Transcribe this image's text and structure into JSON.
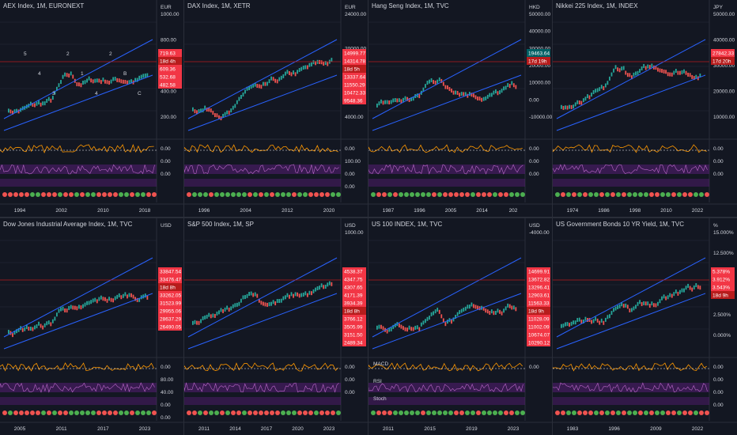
{
  "colors": {
    "bg": "#131722",
    "up": "#26a69a",
    "down": "#ef5350",
    "trend": "#2962ff",
    "badge": "#f23645",
    "purple": "#7b1fa2",
    "green_dot": "#4caf50"
  },
  "panes": [
    {
      "title": "AEX Index, 1M, EURONEXT",
      "currency": "EUR",
      "yticks": [
        "1000.00",
        "800.00",
        "600.00",
        "400.00",
        "200.00"
      ],
      "badges": [
        "719.63",
        "18d 4h",
        "609.36",
        "532.68",
        "482.58"
      ],
      "ind": [
        "0.00",
        "0.00",
        "0.00"
      ],
      "xticks": [
        "1994",
        "2002",
        "2010",
        "2018"
      ],
      "wave": [
        "5",
        "4",
        "3",
        "2",
        "1",
        "4",
        "2",
        "B",
        "C"
      ]
    },
    {
      "title": "DAX Index, 1M, XETR",
      "currency": "EUR",
      "yticks": [
        "24000.00",
        "20000.00",
        "8000.00",
        "4000.00"
      ],
      "badges": [
        "14999.77",
        "14314.78",
        "18d 5h",
        "13337.64",
        "11550.29",
        "10472.33",
        "9548.36"
      ],
      "ind": [
        "0.00",
        "100.00",
        "0.00",
        "0.00"
      ],
      "xticks": [
        "1996",
        "2004",
        "2012",
        "2020"
      ]
    },
    {
      "title": "Hang Seng Index, 1M, TVC",
      "currency": "HKD",
      "yticks": [
        "50000.00",
        "40000.00",
        "30000.00",
        "20000.00",
        "10000.00",
        "0.00",
        "-10000.00"
      ],
      "badges": [
        "19463.64",
        "17d 19h"
      ],
      "ind": [
        "0.00",
        "0.00",
        "0.00"
      ],
      "xticks": [
        "1987",
        "1996",
        "2005",
        "2014",
        "202"
      ]
    },
    {
      "title": "Nikkei 225 Index, 1M, INDEX",
      "currency": "JPY",
      "yticks": [
        "50000.00",
        "40000.00",
        "30000.00",
        "20000.00",
        "10000.00"
      ],
      "badges": [
        "27842.33",
        "17d 20h"
      ],
      "ind": [
        "0.00",
        "0.00",
        "0.00"
      ],
      "xticks": [
        "1974",
        "1986",
        "1998",
        "2010",
        "2022"
      ]
    },
    {
      "title": "Dow Jones Industrial Average Index, 1M, TVC",
      "currency": "USD",
      "yticks": [],
      "badges": [
        "33847.54",
        "33476.47",
        "18d 8h",
        "33262.05",
        "31523.99",
        "29955.06",
        "28637.29",
        "26490.05"
      ],
      "ind": [
        "0.00",
        "80.00",
        "40.00",
        "0.00",
        "0.00"
      ],
      "xticks": [
        "2005",
        "2011",
        "2017",
        "2023"
      ]
    },
    {
      "title": "S&P 500 Index, 1M, SP",
      "currency": "USD",
      "yticks": [
        "1000.00"
      ],
      "badges": [
        "4538.37",
        "4347.75",
        "4307.65",
        "4171.39",
        "3934.39",
        "18d 8h",
        "3766.12",
        "3505.99",
        "3151.50",
        "2489.34"
      ],
      "ind": [
        "0.00",
        "0.00",
        "0.00"
      ],
      "xticks": [
        "2011",
        "2014",
        "2017",
        "2020",
        "2023"
      ]
    },
    {
      "title": "US 100 INDEX, 1M, TVC",
      "currency": "USD",
      "yticks": [
        "-4000.00"
      ],
      "badges": [
        "14699.91",
        "13672.82",
        "13296.41",
        "12903.61",
        "11563.33",
        "18d 9h",
        "11028.09",
        "11002.09",
        "10674.07",
        "10290.12"
      ],
      "ind": [
        "0.00"
      ],
      "labels": [
        "MACD",
        "RSI",
        "Stoch"
      ],
      "xticks": [
        "2011",
        "2015",
        "2019",
        "2023"
      ]
    },
    {
      "title": "US Government Bonds 10 YR Yield, 1M, TVC",
      "currency": "%",
      "yticks": [
        "15.000%",
        "12.500%",
        "10.000%",
        "7.500%",
        "2.500%",
        "0.000%"
      ],
      "badges": [
        "5.378%",
        "3.912%",
        "3.543%",
        "18d 9h"
      ],
      "ind": [
        "0.00",
        "0.00",
        "0.00",
        "0.00"
      ],
      "xticks": [
        "1983",
        "1996",
        "2009",
        "2022"
      ]
    }
  ]
}
